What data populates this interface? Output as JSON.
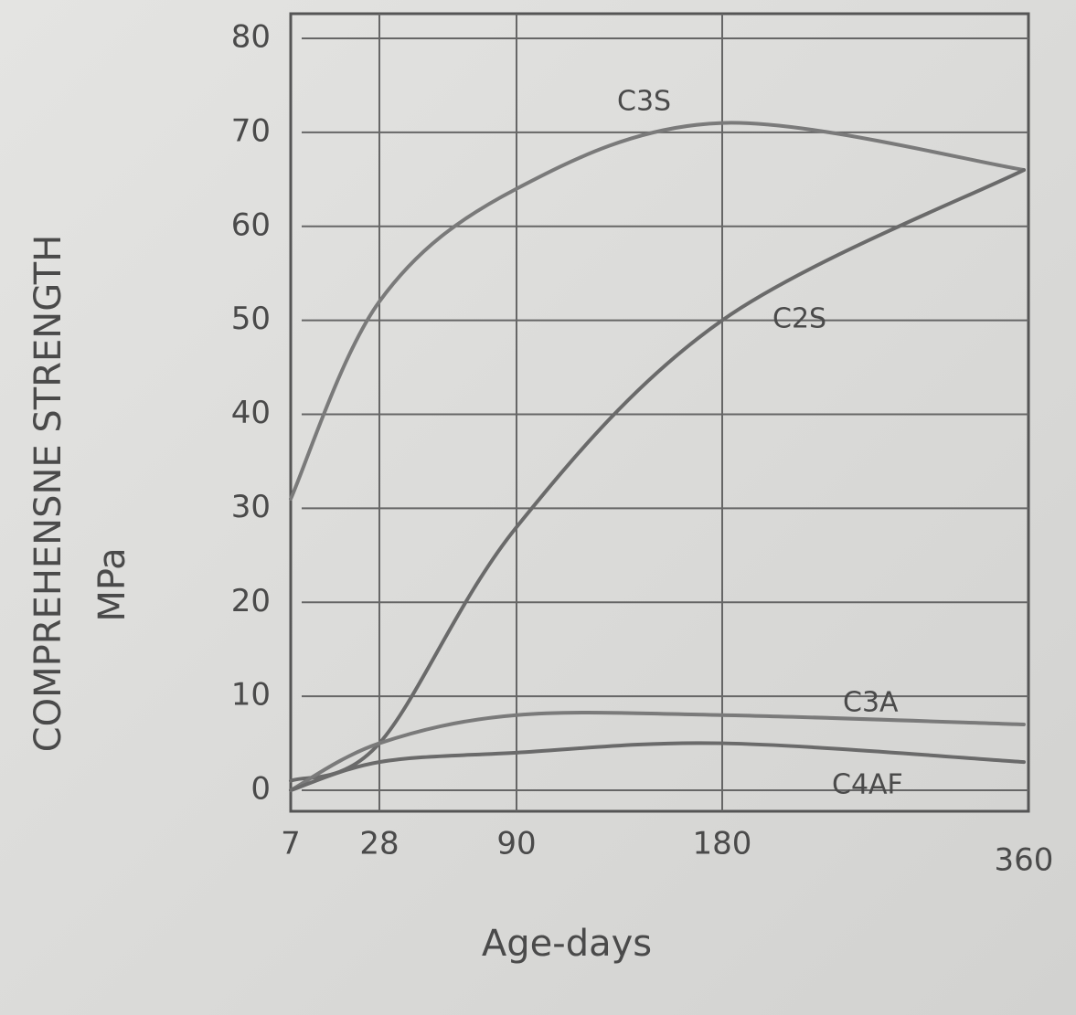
{
  "chart_data": {
    "type": "line",
    "x_label": "Age-days",
    "y_label": "COMPREHENSNE STRENGTH",
    "y_unit": "MPa",
    "categories": [
      "7",
      "28",
      "90",
      "180",
      "360"
    ],
    "ylim": [
      0,
      80
    ],
    "yticks": [
      0,
      10,
      20,
      30,
      40,
      50,
      60,
      70,
      80
    ],
    "grid": true,
    "series": [
      {
        "name": "C3S",
        "color": "#7a7a7a",
        "values": [
          31,
          52,
          64,
          71,
          66
        ]
      },
      {
        "name": "C2S",
        "color": "#6a6a6a",
        "values": [
          1,
          5,
          28,
          50,
          66
        ]
      },
      {
        "name": "C3A",
        "color": "#7a7a7a",
        "values": [
          0,
          5,
          8,
          8,
          7
        ]
      },
      {
        "name": "C4AF",
        "color": "#6a6a6a",
        "values": [
          0,
          3,
          4,
          5,
          3
        ]
      }
    ]
  }
}
